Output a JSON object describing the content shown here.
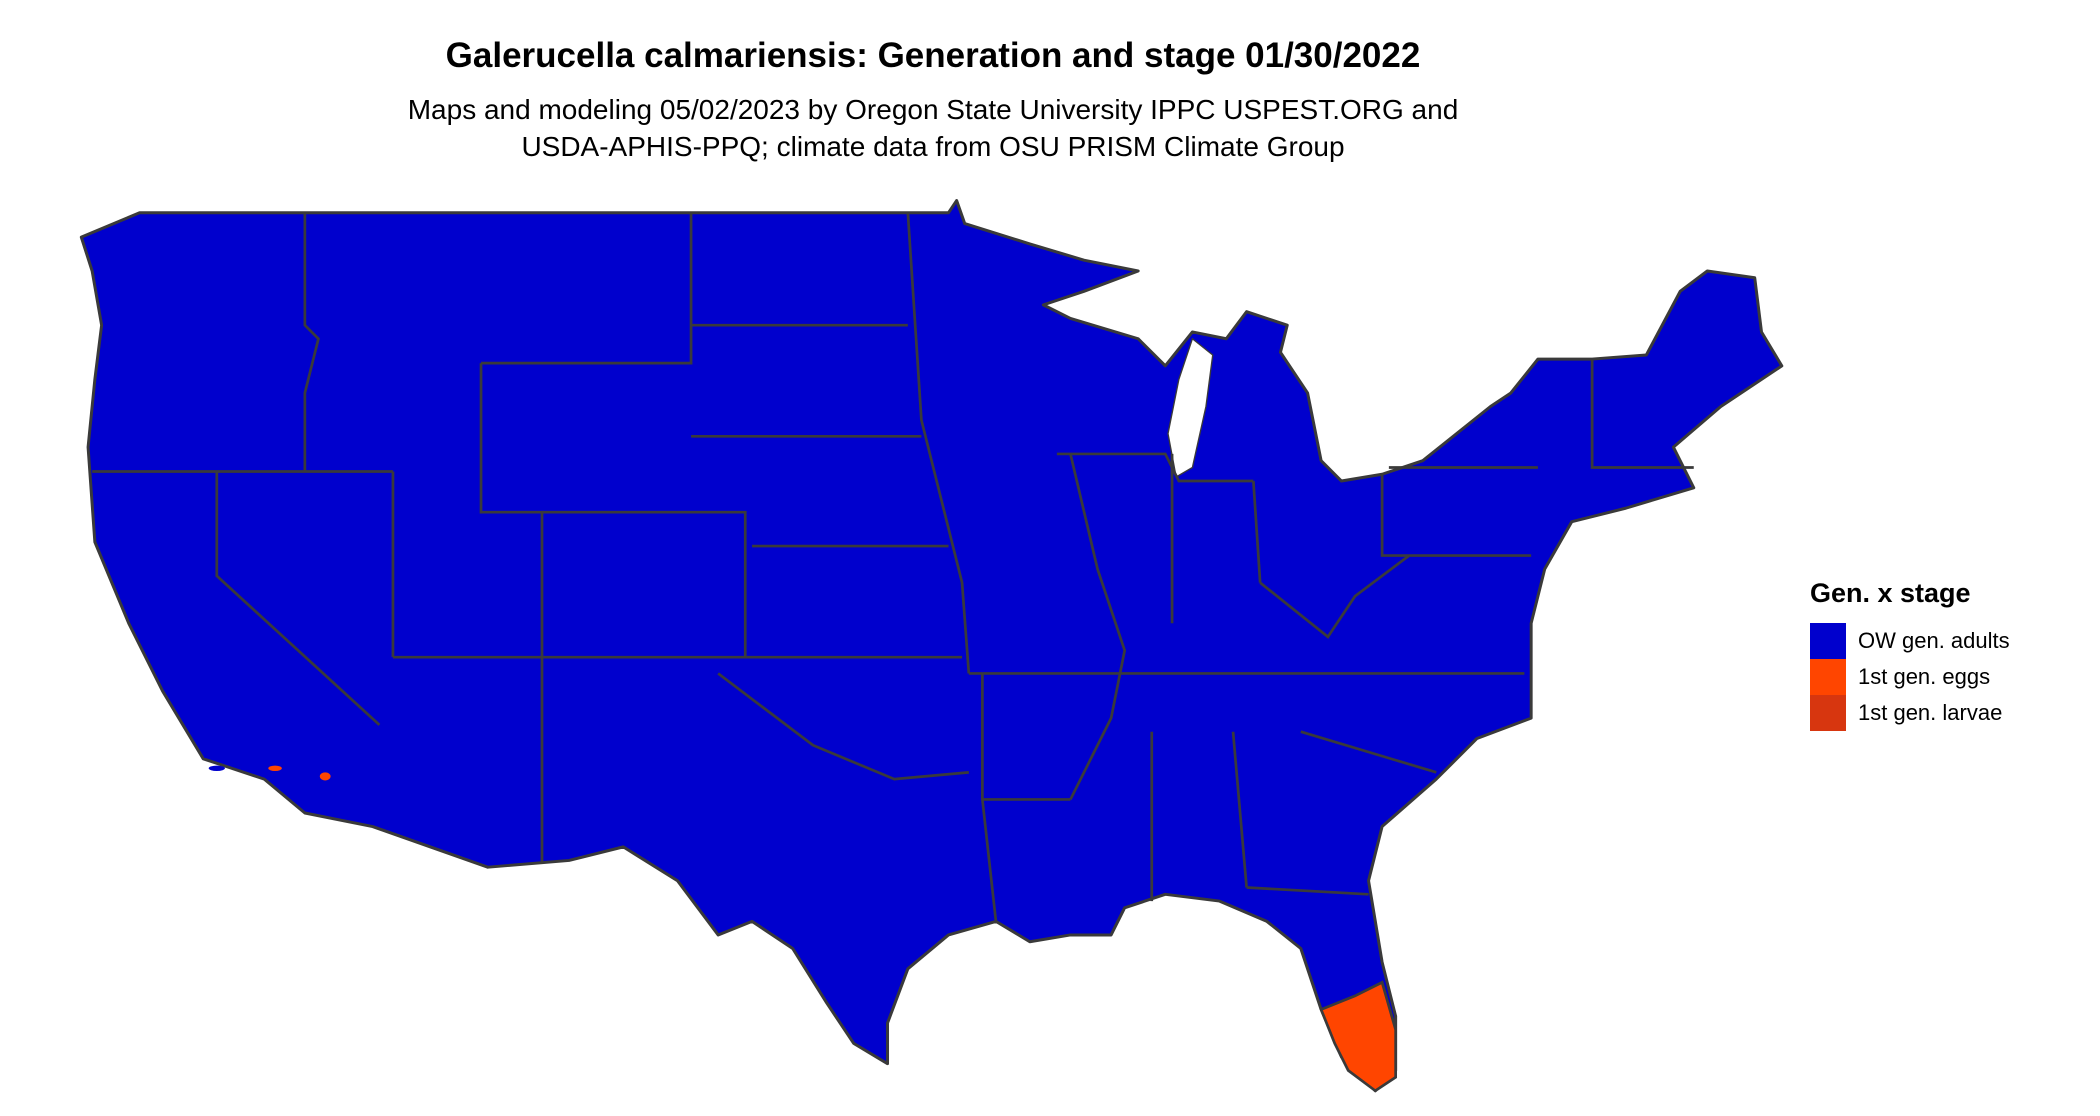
{
  "title": "Galerucella calmariensis: Generation and stage 01/30/2022",
  "subtitle_line1": "Maps and modeling 05/02/2023 by Oregon State University IPPC USPEST.ORG and",
  "subtitle_line2": "USDA-APHIS-PPQ; climate data from OSU PRISM Climate Group",
  "legend": {
    "title": "Gen. x stage",
    "items": [
      {
        "label": "OW gen. adults",
        "color": "#0000CD"
      },
      {
        "label": "1st gen. eggs",
        "color": "#FF4500"
      },
      {
        "label": "1st gen. larvae",
        "color": "#D7360F"
      }
    ]
  },
  "map": {
    "base_color": "#0000CD",
    "highlight_color": "#FF4500",
    "border_color": "#3a3a3a",
    "highlighted_regions": [
      "south Florida",
      "southern California islands"
    ]
  }
}
